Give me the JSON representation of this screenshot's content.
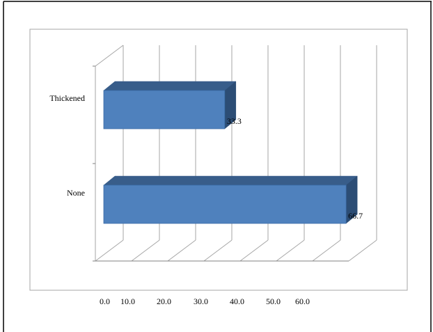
{
  "chart_data": {
    "type": "bar",
    "orientation": "horizontal",
    "style": "3d",
    "categories": [
      "Thickened",
      "None"
    ],
    "values": [
      33.3,
      66.7
    ],
    "data_labels": [
      "33.3",
      "66.7"
    ],
    "x_tick_labels": [
      "0.0",
      "10.0",
      "20.0",
      "30.0",
      "40.0",
      "50.0",
      "60.0"
    ],
    "xlim": [
      0,
      70
    ],
    "grid": true,
    "legend": "none",
    "title": "",
    "xlabel": "",
    "ylabel": "",
    "colors": {
      "bar_front": "#4f81bd",
      "bar_top": "#385d8a",
      "bar_side": "#2c4d75",
      "grid": "#a6a6a6"
    }
  }
}
